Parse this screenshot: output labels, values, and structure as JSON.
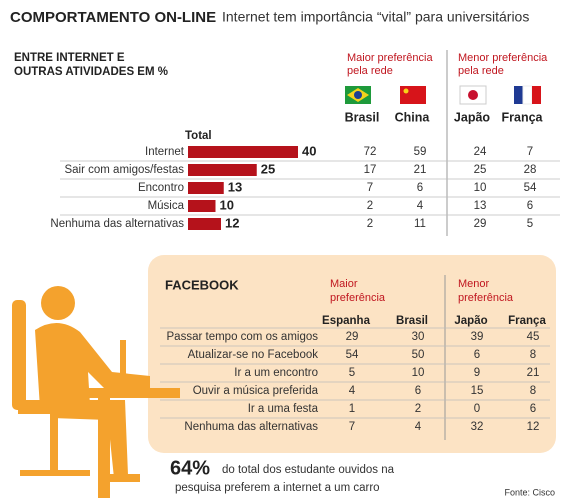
{
  "header": {
    "title": "COMPORTAMENTO ON-LINE",
    "subtitle": "Internet tem importância “vital” para universitários"
  },
  "chart_data": {
    "type": "bar",
    "orientation": "horizontal",
    "title_lines": [
      "ENTRE INTERNET E",
      "OUTRAS ATIVIDADES EM %"
    ],
    "categories": [
      "Internet",
      "Sair com amigos/festas",
      "Encontro",
      "Música",
      "Nenhuma das alternativas"
    ],
    "series": [
      {
        "name": "Total",
        "color": "#b5121b",
        "values": [
          40,
          25,
          13,
          10,
          12
        ]
      }
    ]
  },
  "countries": {
    "groups": [
      {
        "label_lines": [
          "Maior preferência",
          "pela rede"
        ]
      },
      {
        "label_lines": [
          "Menor preferência",
          "pela rede"
        ]
      }
    ],
    "columns": [
      {
        "name": "Brasil",
        "values": [
          72,
          17,
          7,
          2,
          2
        ]
      },
      {
        "name": "China",
        "values": [
          59,
          21,
          6,
          4,
          11
        ]
      },
      {
        "name": "Japão",
        "values": [
          24,
          25,
          10,
          13,
          29
        ]
      },
      {
        "name": "França",
        "values": [
          7,
          28,
          54,
          6,
          5
        ]
      }
    ]
  },
  "facebook": {
    "title": "FACEBOOK",
    "groups": [
      {
        "label_lines": [
          "Maior",
          "preferência"
        ]
      },
      {
        "label_lines": [
          "Menor",
          "preferência"
        ]
      }
    ],
    "columns": [
      "Espanha",
      "Brasil",
      "Japão",
      "França"
    ],
    "rows": [
      {
        "label": "Passar tempo com os amigos",
        "values": [
          29,
          30,
          39,
          45
        ]
      },
      {
        "label": "Atualizar-se no Facebook",
        "values": [
          54,
          50,
          6,
          8
        ]
      },
      {
        "label": "Ir a um encontro",
        "values": [
          5,
          10,
          9,
          21
        ]
      },
      {
        "label": "Ouvir a música preferida",
        "values": [
          4,
          6,
          15,
          8
        ]
      },
      {
        "label": "Ir a uma festa",
        "values": [
          1,
          2,
          0,
          6
        ]
      },
      {
        "label": "Nenhuma das alternativas",
        "values": [
          7,
          4,
          32,
          12
        ]
      }
    ]
  },
  "footer": {
    "highlight": "64%",
    "text_lines": [
      "do total dos estudante ouvidos na",
      "pesquisa preferem a internet a um carro"
    ],
    "source": "Fonte: Cisco"
  }
}
